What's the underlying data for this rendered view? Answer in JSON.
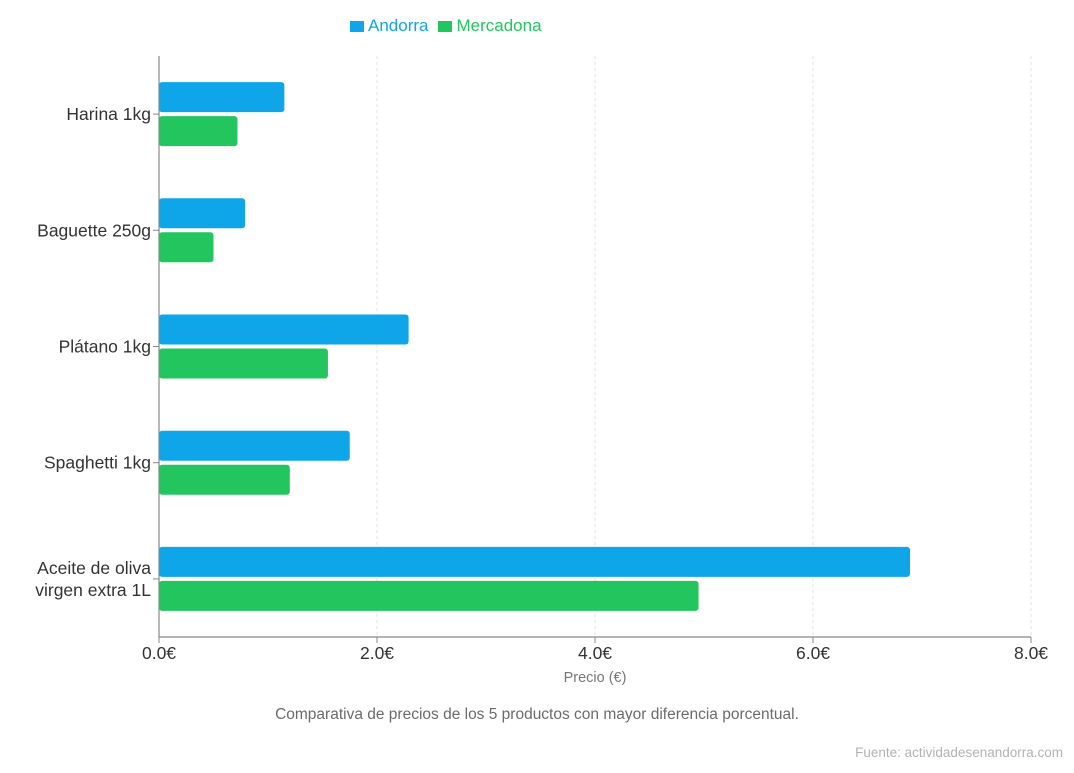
{
  "colors": {
    "andorra": "#0ea5e9",
    "mercadona": "#22c55e",
    "axis": "#888888",
    "grid": "#e2e2e2",
    "text": "#333333"
  },
  "chart_data": {
    "type": "bar",
    "orientation": "horizontal",
    "categories": [
      [
        "Harina 1kg"
      ],
      [
        "Baguette 250g"
      ],
      [
        "Plátano 1kg"
      ],
      [
        "Spaghetti 1kg"
      ],
      [
        "Aceite de oliva",
        "virgen extra 1L"
      ]
    ],
    "series": [
      {
        "name": "Andorra",
        "color": "#0ea5e9",
        "values": [
          1.15,
          0.79,
          2.29,
          1.75,
          6.89
        ]
      },
      {
        "name": "Mercadona",
        "color": "#22c55e",
        "values": [
          0.72,
          0.5,
          1.55,
          1.2,
          4.95
        ]
      }
    ],
    "xlabel": "Precio (€)",
    "xlim": [
      0,
      8
    ],
    "xticks": [
      0,
      2,
      4,
      6,
      8
    ],
    "xtick_labels": [
      "0.0€",
      "2.0€",
      "4.0€",
      "6.0€",
      "8.0€"
    ],
    "grid": "vertical dashed",
    "legend_position": "top-center"
  },
  "caption": "Comparativa de precios de los 5 productos con mayor diferencia porcentual.",
  "source": "Fuente: actividadesenandorra.com"
}
